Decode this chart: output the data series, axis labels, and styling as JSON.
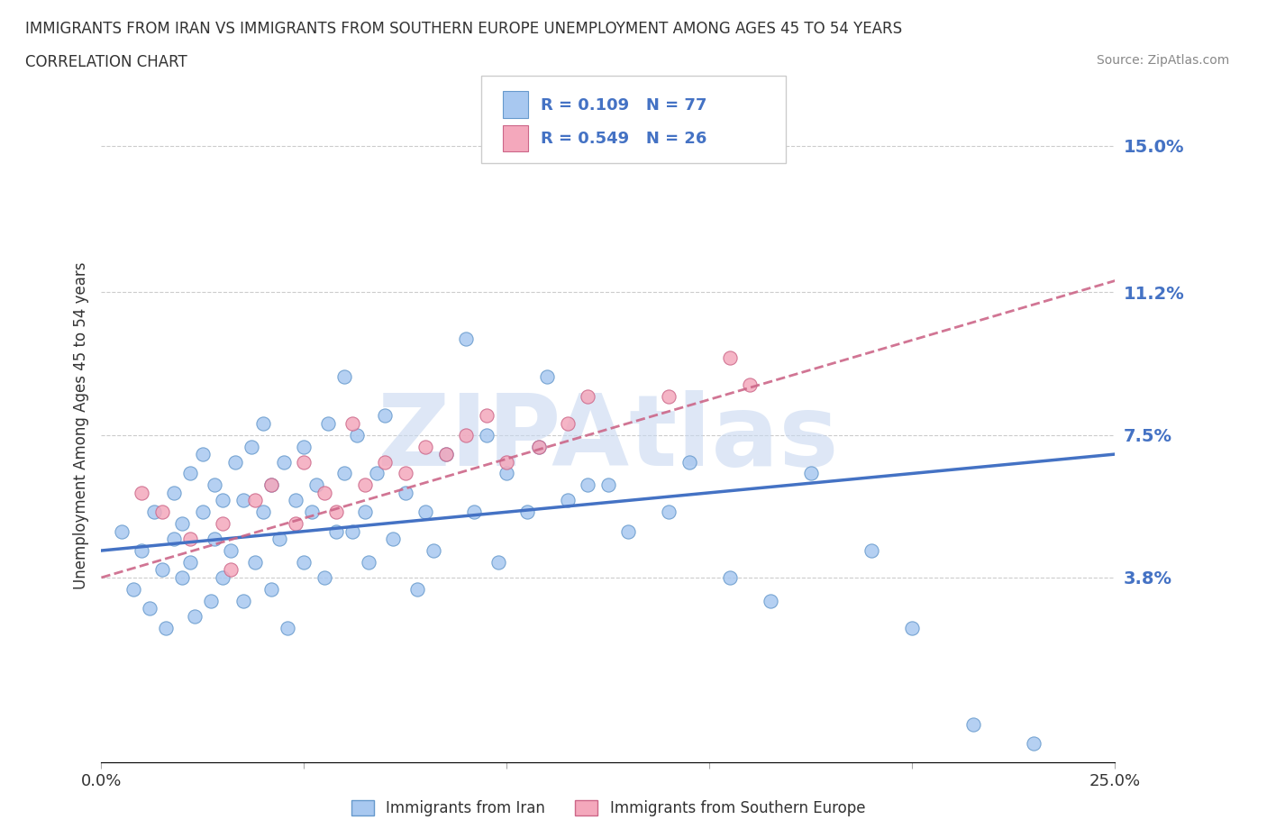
{
  "title_line1": "IMMIGRANTS FROM IRAN VS IMMIGRANTS FROM SOUTHERN EUROPE UNEMPLOYMENT AMONG AGES 45 TO 54 YEARS",
  "title_line2": "CORRELATION CHART",
  "source_text": "Source: ZipAtlas.com",
  "ylabel": "Unemployment Among Ages 45 to 54 years",
  "xmin": 0.0,
  "xmax": 0.25,
  "ymin": -0.01,
  "ymax": 0.165,
  "yticks": [
    0.038,
    0.075,
    0.112,
    0.15
  ],
  "ytick_labels": [
    "3.8%",
    "7.5%",
    "11.2%",
    "15.0%"
  ],
  "xticks": [
    0.0,
    0.05,
    0.1,
    0.15,
    0.2,
    0.25
  ],
  "xtick_labels": [
    "0.0%",
    "",
    "",
    "",
    "",
    "25.0%"
  ],
  "iran_color": "#A8C8F0",
  "iran_color_edge": "#6699CC",
  "southern_color": "#F4A8BC",
  "southern_color_edge": "#CC6688",
  "trend_iran_color": "#4472C4",
  "trend_southern_color": "#CC6688",
  "legend_text_color": "#4472C4",
  "R_iran": 0.109,
  "N_iran": 77,
  "R_southern": 0.549,
  "N_southern": 26,
  "watermark": "ZIPAtlas",
  "watermark_color": "#C8D8F0",
  "iran_x": [
    0.005,
    0.008,
    0.01,
    0.012,
    0.013,
    0.015,
    0.016,
    0.018,
    0.018,
    0.02,
    0.02,
    0.022,
    0.022,
    0.023,
    0.025,
    0.025,
    0.027,
    0.028,
    0.028,
    0.03,
    0.03,
    0.032,
    0.033,
    0.035,
    0.035,
    0.037,
    0.038,
    0.04,
    0.04,
    0.042,
    0.042,
    0.044,
    0.045,
    0.046,
    0.048,
    0.05,
    0.05,
    0.052,
    0.053,
    0.055,
    0.056,
    0.058,
    0.06,
    0.06,
    0.062,
    0.063,
    0.065,
    0.066,
    0.068,
    0.07,
    0.072,
    0.075,
    0.078,
    0.08,
    0.082,
    0.085,
    0.09,
    0.092,
    0.095,
    0.098,
    0.1,
    0.105,
    0.108,
    0.11,
    0.115,
    0.12,
    0.125,
    0.13,
    0.14,
    0.145,
    0.155,
    0.165,
    0.175,
    0.19,
    0.2,
    0.215,
    0.23
  ],
  "iran_y": [
    0.05,
    0.035,
    0.045,
    0.03,
    0.055,
    0.04,
    0.025,
    0.048,
    0.06,
    0.038,
    0.052,
    0.042,
    0.065,
    0.028,
    0.055,
    0.07,
    0.032,
    0.048,
    0.062,
    0.038,
    0.058,
    0.045,
    0.068,
    0.032,
    0.058,
    0.072,
    0.042,
    0.055,
    0.078,
    0.035,
    0.062,
    0.048,
    0.068,
    0.025,
    0.058,
    0.042,
    0.072,
    0.055,
    0.062,
    0.038,
    0.078,
    0.05,
    0.09,
    0.065,
    0.05,
    0.075,
    0.055,
    0.042,
    0.065,
    0.08,
    0.048,
    0.06,
    0.035,
    0.055,
    0.045,
    0.07,
    0.1,
    0.055,
    0.075,
    0.042,
    0.065,
    0.055,
    0.072,
    0.09,
    0.058,
    0.062,
    0.062,
    0.05,
    0.055,
    0.068,
    0.038,
    0.032,
    0.065,
    0.045,
    0.025,
    0.0,
    -0.005
  ],
  "southern_x": [
    0.01,
    0.015,
    0.022,
    0.03,
    0.032,
    0.038,
    0.042,
    0.048,
    0.05,
    0.055,
    0.058,
    0.062,
    0.065,
    0.07,
    0.075,
    0.08,
    0.085,
    0.09,
    0.095,
    0.1,
    0.108,
    0.115,
    0.12,
    0.14,
    0.155,
    0.16
  ],
  "southern_y": [
    0.06,
    0.055,
    0.048,
    0.052,
    0.04,
    0.058,
    0.062,
    0.052,
    0.068,
    0.06,
    0.055,
    0.078,
    0.062,
    0.068,
    0.065,
    0.072,
    0.07,
    0.075,
    0.08,
    0.068,
    0.072,
    0.078,
    0.085,
    0.085,
    0.095,
    0.088
  ],
  "trend_iran_x0": 0.0,
  "trend_iran_y0": 0.045,
  "trend_iran_x1": 0.25,
  "trend_iran_y1": 0.07,
  "trend_se_x0": 0.0,
  "trend_se_y0": 0.038,
  "trend_se_x1": 0.25,
  "trend_se_y1": 0.115
}
